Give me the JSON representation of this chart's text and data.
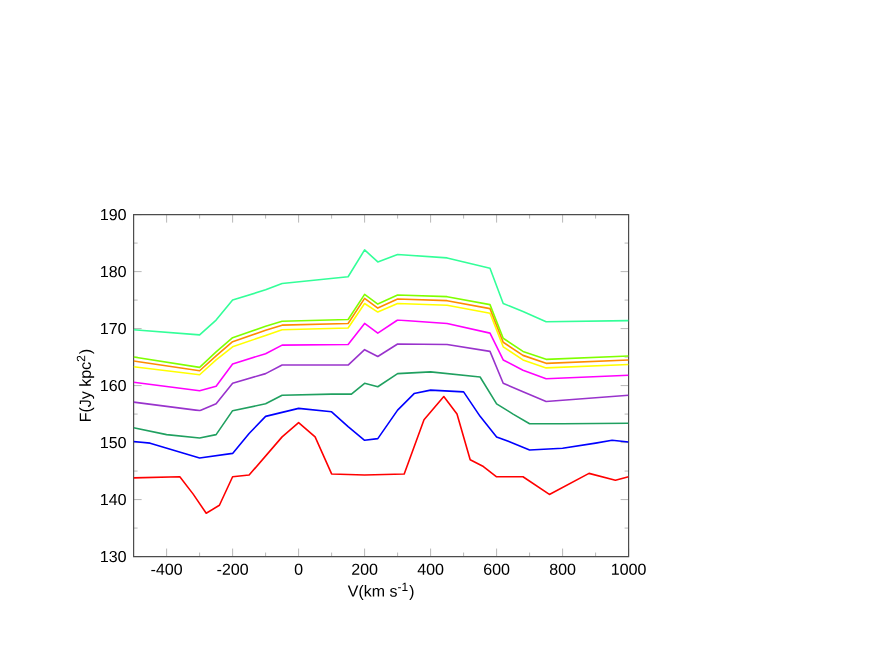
{
  "chart_data": {
    "type": "line",
    "xlabel": "V(km s$^{-1}$)",
    "ylabel": "F(Jy kpc$^{2}$)",
    "xlim": [
      -500,
      1000
    ],
    "ylim": [
      130,
      190
    ],
    "xticks": [
      -400,
      -200,
      0,
      200,
      400,
      600,
      800,
      1000
    ],
    "yticks": [
      130,
      140,
      150,
      160,
      170,
      180,
      190
    ],
    "marker": "none",
    "line_style": "solid",
    "series": [
      {
        "color": "#ff0000",
        "x": [
          -500,
          -360,
          -320,
          -280,
          -240,
          -200,
          -150,
          -50,
          0,
          50,
          100,
          200,
          320,
          380,
          440,
          480,
          520,
          560,
          600,
          680,
          760,
          880,
          960,
          1000
        ],
        "values": [
          143.8,
          144,
          141,
          137.6,
          139,
          144,
          144.3,
          151,
          153.5,
          151,
          144.5,
          144.3,
          144.5,
          154,
          158.1,
          155,
          147,
          145.8,
          144,
          144,
          140.9,
          144.6,
          143.4,
          144
        ]
      },
      {
        "color": "#0000ff",
        "x": [
          -500,
          -450,
          -300,
          -200,
          -150,
          -100,
          0,
          100,
          150,
          200,
          240,
          300,
          350,
          400,
          500,
          550,
          600,
          650,
          700,
          800,
          900,
          950,
          1000
        ],
        "values": [
          150.2,
          149.9,
          147.3,
          148.1,
          151.6,
          154.6,
          156,
          155.4,
          152.8,
          150.4,
          150.7,
          155.7,
          158.6,
          159.2,
          158.9,
          154.6,
          151,
          149.9,
          148.7,
          149,
          149.9,
          150.4,
          150.1
        ]
      },
      {
        "color": "#20a060",
        "x": [
          -500,
          -400,
          -300,
          -250,
          -200,
          -100,
          -50,
          100,
          160,
          200,
          240,
          300,
          400,
          550,
          600,
          650,
          700,
          800,
          1000
        ],
        "values": [
          152.6,
          151.4,
          150.8,
          151.4,
          155.6,
          156.8,
          158.3,
          158.5,
          158.5,
          160.4,
          159.8,
          162.1,
          162.4,
          161.5,
          156.8,
          155,
          153.3,
          153.3,
          153.4
        ]
      },
      {
        "color": "#9933cc",
        "x": [
          -500,
          -300,
          -250,
          -200,
          -100,
          -50,
          150,
          200,
          240,
          300,
          450,
          580,
          620,
          680,
          750,
          1000
        ],
        "values": [
          157.1,
          155.6,
          156.8,
          160.4,
          162.1,
          163.6,
          163.6,
          166.3,
          165.1,
          167.3,
          167.2,
          166,
          160.4,
          158.9,
          157.2,
          158.3
        ]
      },
      {
        "color": "#ff00ff",
        "x": [
          -500,
          -300,
          -250,
          -200,
          -100,
          -50,
          150,
          200,
          240,
          300,
          450,
          580,
          620,
          680,
          750,
          1000
        ],
        "values": [
          160.6,
          159.1,
          159.9,
          163.8,
          165.6,
          167.1,
          167.2,
          170.9,
          169.2,
          171.5,
          170.9,
          169.2,
          164.5,
          162.7,
          161.2,
          161.8
        ]
      },
      {
        "color": "#ffff00",
        "x": [
          -500,
          -300,
          -250,
          -200,
          -100,
          -50,
          150,
          200,
          240,
          300,
          450,
          580,
          620,
          680,
          750,
          1000
        ],
        "values": [
          163.3,
          161.9,
          164.5,
          166.8,
          168.8,
          169.8,
          170.1,
          174.4,
          172.9,
          174.4,
          174.1,
          172.7,
          166.8,
          164.5,
          163.1,
          163.7
        ]
      },
      {
        "color": "#ff8c00",
        "x": [
          -500,
          -300,
          -250,
          -200,
          -100,
          -50,
          150,
          200,
          240,
          300,
          450,
          580,
          620,
          680,
          750,
          1000
        ],
        "values": [
          164.3,
          162.6,
          165.2,
          167.7,
          169.7,
          170.6,
          170.9,
          175.3,
          173.6,
          175.2,
          174.9,
          173.5,
          167.6,
          165.3,
          163.9,
          164.5
        ]
      },
      {
        "color": "#80ff00",
        "x": [
          -500,
          -300,
          -250,
          -200,
          -100,
          -50,
          150,
          200,
          240,
          300,
          450,
          580,
          620,
          680,
          750,
          1000
        ],
        "values": [
          165,
          163.2,
          165.9,
          168.4,
          170.4,
          171.3,
          171.6,
          176,
          174.3,
          175.9,
          175.6,
          174.2,
          168.3,
          166,
          164.6,
          165.2
        ]
      },
      {
        "color": "#33ff99",
        "x": [
          -500,
          -300,
          -250,
          -200,
          -100,
          -50,
          150,
          200,
          240,
          300,
          450,
          580,
          620,
          680,
          750,
          1000
        ],
        "values": [
          169.8,
          168.9,
          171.5,
          175,
          176.8,
          177.9,
          179.1,
          183.8,
          181.7,
          183,
          182.4,
          180.6,
          174.4,
          173,
          171.2,
          171.4
        ]
      }
    ]
  }
}
